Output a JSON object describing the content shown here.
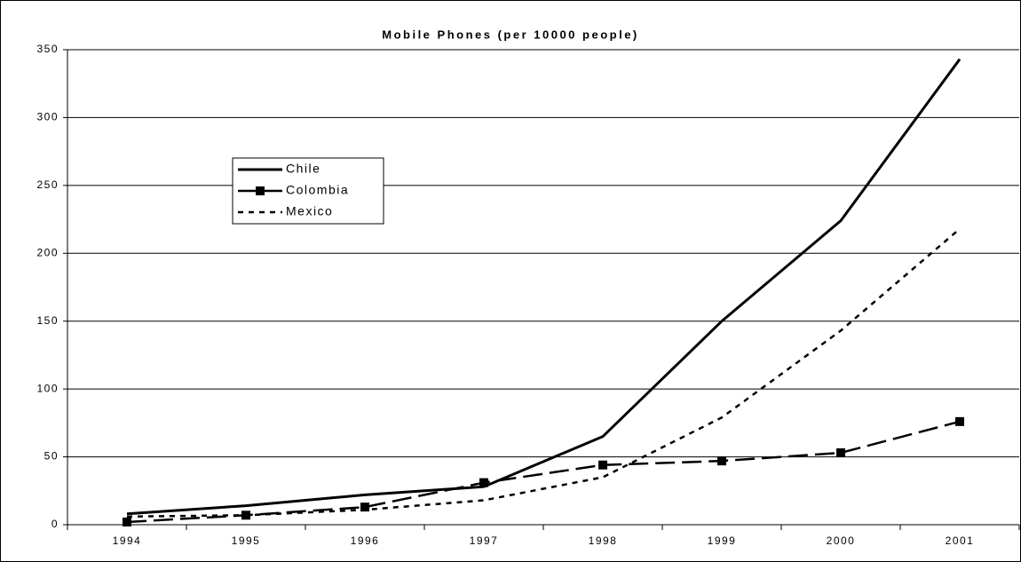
{
  "chart_data": {
    "type": "line",
    "title": "Mobile Phones (per 10000 people)",
    "categories": [
      "1994",
      "1995",
      "1996",
      "1997",
      "1998",
      "1999",
      "2000",
      "2001"
    ],
    "series": [
      {
        "name": "Chile",
        "color": "#000000",
        "line_style": "solid",
        "values": [
          8,
          14,
          22,
          28,
          65,
          150,
          224,
          343
        ]
      },
      {
        "name": "Colombia",
        "color": "#000000",
        "line_style": "long-dash",
        "marker": "square",
        "values": [
          2,
          7,
          13,
          31,
          44,
          47,
          53,
          76
        ]
      },
      {
        "name": "Mexico",
        "color": "#000000",
        "line_style": "short-dash",
        "values": [
          6,
          7,
          11,
          18,
          35,
          79,
          143,
          218
        ]
      }
    ],
    "ylim": [
      0,
      350
    ],
    "yticks": [
      0,
      50,
      100,
      150,
      200,
      250,
      300,
      350
    ],
    "grid": true
  }
}
